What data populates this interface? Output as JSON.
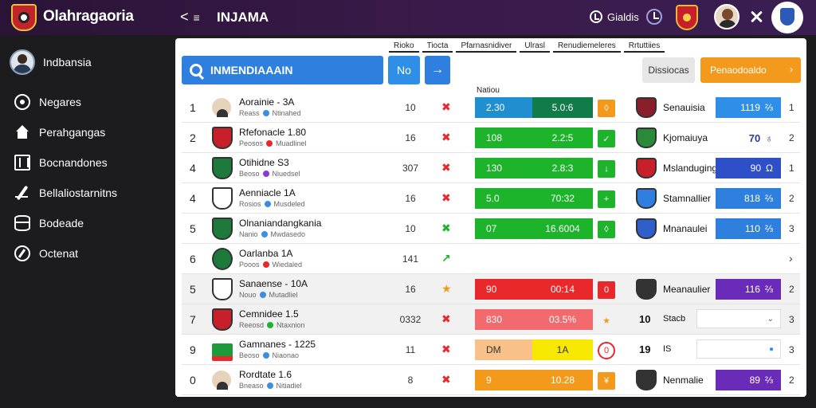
{
  "app": {
    "title": "Olahragaoria",
    "page_title": "INJAMA",
    "back_label": "<",
    "language": "Gialdis"
  },
  "colors": {
    "topbar": "#2a1436",
    "accent_blue": "#2f7fde",
    "accent_orange": "#f39a1d",
    "green": "#1db32a",
    "red": "#e8282a",
    "purple": "#6a2bb8"
  },
  "icons": [
    "globe-icon",
    "clock-icon",
    "crest-icon",
    "user-avatar",
    "tools-icon",
    "club-logo"
  ],
  "sidebar": {
    "user_name": "Indbansia",
    "items": [
      {
        "label": "Negares",
        "icon": "record-icon"
      },
      {
        "label": "Perahgangas",
        "icon": "home-icon"
      },
      {
        "label": "Bocnandones",
        "icon": "board-icon"
      },
      {
        "label": "Bellaliostarnitns",
        "icon": "pen-icon"
      },
      {
        "label": "Bodeade",
        "icon": "database-icon"
      },
      {
        "label": "Octenat",
        "icon": "compass-icon"
      }
    ]
  },
  "header_strip": [
    "Rioko",
    "Tiocta",
    "Pfarnasnidiver",
    "Ulrasl",
    "Renudiemeleres",
    "Rrtuttiies"
  ],
  "search": {
    "placeholder": "INMENDIAAAIN",
    "no_label": "No",
    "go_label": "→"
  },
  "toolbar": {
    "filter_label": "Dissiocas",
    "primary_label": "Penaodoaldo",
    "primary_arrow": "›"
  },
  "column_header": "Natiou",
  "rows": [
    {
      "rank": "1",
      "name": "Aorainie - 3A",
      "sub_a": "Reass",
      "sub_b": "Ntinahed",
      "num": "10",
      "mark": "✖",
      "mark_color": "#e8282a",
      "bar1": "2.30",
      "bar2": "5.0:6",
      "bar1_color": "#1f8fcf",
      "bar2_color": "#127b4a",
      "tag": "◊",
      "tag_color": "#f39a1d",
      "opp": "Senauisia",
      "score": "1119",
      "score_icon": "⅔",
      "score_color": "#2f8fe8",
      "end": "1",
      "crest": "player",
      "crest_color": "#e7d3bc",
      "opp_color": "#8a1e2a",
      "dot_a": "#3a8fe0",
      "dot_b": "#8a8a8a"
    },
    {
      "rank": "2",
      "name": "Rfefonacle 1.80",
      "sub_a": "Peosos",
      "sub_b": "Muadlinel",
      "num": "16",
      "mark": "✖",
      "mark_color": "#e8282a",
      "bar1": "108",
      "bar2": "2.2:5",
      "bar1_color": "#1db32a",
      "bar2_color": "#1db32a",
      "tag": "✓",
      "tag_color": "#1db32a",
      "opp": "Kjomaiuya",
      "score": "70",
      "score_icon": "♁",
      "score_color": "#ffffff",
      "end": "2",
      "crest": "shield",
      "crest_color": "#c8202a",
      "opp_color": "#2a8a3a",
      "dot_a": "#e8282a",
      "dot_b": "#8a8a8a"
    },
    {
      "rank": "4",
      "name": "Otihidne S3",
      "sub_a": "Beoso",
      "sub_b": "Niuedsel",
      "num": "307",
      "mark": "✖",
      "mark_color": "#e8282a",
      "bar1": "130",
      "bar2": "2.8:3",
      "bar1_color": "#1db32a",
      "bar2_color": "#1db32a",
      "tag": "↓",
      "tag_color": "#1db32a",
      "opp": "Mslanduging",
      "score": "90",
      "score_icon": "Ω",
      "score_color": "#2f4fc8",
      "end": "1",
      "crest": "shield",
      "crest_color": "#1d7a3a",
      "opp_color": "#c8202a",
      "dot_a": "#8a3ad8",
      "dot_b": "#8a8a8a"
    },
    {
      "rank": "4",
      "name": "Aenniacle 1A",
      "sub_a": "Rosios",
      "sub_b": "Musdeled",
      "num": "16",
      "mark": "✖",
      "mark_color": "#e8282a",
      "bar1": "5.0",
      "bar2": "70:32",
      "bar1_color": "#1db32a",
      "bar2_color": "#1db32a",
      "tag": "+",
      "tag_color": "#1db32a",
      "opp": "Stamnallier",
      "score": "818",
      "score_icon": "⅔",
      "score_color": "#2f7fde",
      "end": "2",
      "crest": "shield",
      "crest_color": "#ffffff",
      "opp_color": "#2f7fde",
      "dot_a": "#3a8fe0",
      "dot_b": "#8a8a8a"
    },
    {
      "rank": "5",
      "name": "Olnaniandangkania",
      "sub_a": "Nanio",
      "sub_b": "Mwdasedo",
      "num": "10",
      "mark": "✖",
      "mark_color": "#1db32a",
      "bar1": "07",
      "bar2": "16.6004",
      "bar1_color": "#1db32a",
      "bar2_color": "#1db32a",
      "tag": "◊",
      "tag_color": "#1db32a",
      "opp": "Mnanaulei",
      "score": "110",
      "score_icon": "⅔",
      "score_color": "#2f7fde",
      "end": "3",
      "crest": "shield",
      "crest_color": "#1d7a3a",
      "opp_color": "#2f5fc8",
      "dot_a": "#3a8fe0",
      "dot_b": "#8a8a8a"
    },
    {
      "rank": "6",
      "name": "Oarlanba 1A",
      "sub_a": "Pooos",
      "sub_b": "Wiedaled",
      "num": "141",
      "mark": "↗",
      "mark_color": "#1db32a",
      "bar1": "",
      "bar2": "",
      "bar1_color": "",
      "bar2_color": "",
      "tag": "",
      "tag_color": "",
      "opp": "",
      "score": "",
      "score_icon": "",
      "score_color": "",
      "end": "›",
      "crest": "circle",
      "crest_color": "#1d7a3a",
      "opp_color": "",
      "dot_a": "#e8282a",
      "dot_b": "#8a8a8a"
    },
    {
      "rank": "5",
      "name": "Sanaense - 10A",
      "sub_a": "Nouo",
      "sub_b": "Mutadliel",
      "num": "16",
      "mark": "★",
      "mark_color": "#f39a1d",
      "bar1": "90",
      "bar2": "00:14",
      "bar1_color": "#e8282a",
      "bar2_color": "#e8282a",
      "tag": "0",
      "tag_color": "#e8282a",
      "opp": "Meanaulier",
      "score": "116",
      "score_icon": "⅔",
      "score_color": "#6a2bb8",
      "end": "2",
      "crest": "shield",
      "crest_color": "#ffffff",
      "opp_color": "#333333",
      "dot_a": "#3a8fe0",
      "dot_b": "#8a8a8a"
    },
    {
      "rank": "7",
      "name": "Cemnidee 1.5",
      "sub_a": "Reeosd",
      "sub_b": "Ntaxnion",
      "num": "0332",
      "mark": "✖",
      "mark_color": "#e8282a",
      "bar1": "830",
      "bar2": "03.5%",
      "bar1_color": "#f26a6e",
      "bar2_color": "#f26a6e",
      "tag": "★",
      "tag_color": "transparent",
      "opp": "Stacb",
      "score": "10",
      "score_icon": "",
      "score_color": "",
      "end": "3",
      "crest": "shield",
      "crest_color": "#c8202a",
      "opp_color": "",
      "dot_a": "#1db32a",
      "dot_b": "#8a8a8a"
    },
    {
      "rank": "9",
      "name": "Gamnanes - 1225",
      "sub_a": "Beoso",
      "sub_b": "Niaonao",
      "num": "11",
      "mark": "✖",
      "mark_color": "#e8282a",
      "bar1": "DM",
      "bar2": "1A",
      "bar1_color": "#f9c18a",
      "bar2_color": "#f6e800",
      "tag": "0",
      "tag_color": "transparent",
      "opp": "IS",
      "score": "19",
      "score_icon": "",
      "score_color": "",
      "end": "3",
      "crest": "flag",
      "crest_color": "#1d9a3a",
      "opp_color": "",
      "dot_a": "#3a8fe0",
      "dot_b": "#8a8a8a"
    },
    {
      "rank": "0",
      "name": "Rordtate 1.6",
      "sub_a": "Bneaso",
      "sub_b": "Nitiadiel",
      "num": "8",
      "mark": "✖",
      "mark_color": "#e8282a",
      "bar1": "9",
      "bar2": "10.28",
      "bar1_color": "#f39a1d",
      "bar2_color": "#f39a1d",
      "tag": "¥",
      "tag_color": "#f39a1d",
      "opp": "Nenmalie",
      "score": "89",
      "score_icon": "⅔",
      "score_color": "#6a2bb8",
      "end": "2",
      "crest": "player",
      "crest_color": "#e7d3bc",
      "opp_color": "#333333",
      "dot_a": "#3a8fe0",
      "dot_b": "#8a8a8a"
    }
  ]
}
